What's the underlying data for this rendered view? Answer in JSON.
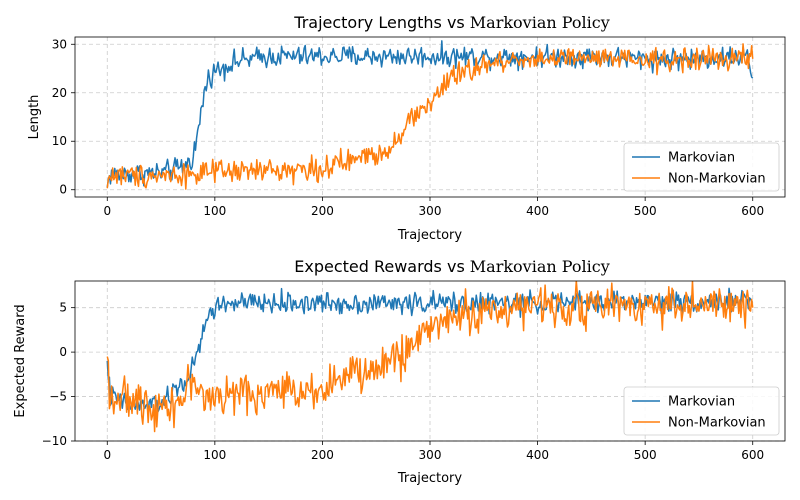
{
  "chart_data": [
    {
      "type": "line",
      "title_main": "Trajectory Lengths vs",
      "title_serif": "Markovian Policy",
      "xlabel": "Trajectory",
      "ylabel": "Length",
      "xlim": [
        -30,
        630
      ],
      "ylim": [
        -1.5,
        31.5
      ],
      "xticks": [
        0,
        100,
        200,
        300,
        400,
        500,
        600
      ],
      "yticks": [
        0,
        10,
        20,
        30
      ],
      "grid": true,
      "legend": "bottom-right",
      "series": [
        {
          "name": "Markovian",
          "color": "#1f77b4",
          "keypoints": [
            [
              0,
              0.5
            ],
            [
              2,
              3
            ],
            [
              20,
              3.3
            ],
            [
              50,
              3.5
            ],
            [
              60,
              4
            ],
            [
              70,
              4.8
            ],
            [
              78,
              6
            ],
            [
              82,
              9
            ],
            [
              86,
              14
            ],
            [
              90,
              20
            ],
            [
              95,
              23.5
            ],
            [
              100,
              24.5
            ],
            [
              110,
              25.5
            ],
            [
              120,
              26.5
            ],
            [
              150,
              27.5
            ],
            [
              200,
              27.5
            ],
            [
              250,
              27.5
            ],
            [
              300,
              27.5
            ],
            [
              350,
              27.5
            ],
            [
              400,
              27.5
            ],
            [
              450,
              27.5
            ],
            [
              500,
              27
            ],
            [
              550,
              27
            ],
            [
              595,
              27.5
            ],
            [
              598,
              25
            ],
            [
              600,
              23
            ]
          ],
          "noise": 1.1
        },
        {
          "name": "Non-Markovian",
          "color": "#ff7f0e",
          "keypoints": [
            [
              0,
              0.3
            ],
            [
              2,
              3
            ],
            [
              50,
              3
            ],
            [
              100,
              3.5
            ],
            [
              150,
              4
            ],
            [
              200,
              4.3
            ],
            [
              220,
              5.5
            ],
            [
              240,
              7
            ],
            [
              260,
              8
            ],
            [
              270,
              11
            ],
            [
              280,
              14
            ],
            [
              290,
              16
            ],
            [
              300,
              18
            ],
            [
              320,
              23
            ],
            [
              340,
              25
            ],
            [
              360,
              26
            ],
            [
              380,
              27
            ],
            [
              400,
              27
            ],
            [
              450,
              27
            ],
            [
              500,
              26.5
            ],
            [
              550,
              27
            ],
            [
              600,
              27
            ]
          ],
          "noise": 1.2
        }
      ]
    },
    {
      "type": "line",
      "title_main": "Expected Rewards vs",
      "title_serif": "Markovian Policy",
      "xlabel": "Trajectory",
      "ylabel": "Expected Reward",
      "xlim": [
        -30,
        630
      ],
      "ylim": [
        -10,
        8
      ],
      "xticks": [
        0,
        100,
        200,
        300,
        400,
        500,
        600
      ],
      "yticks": [
        -10,
        -5,
        0,
        5
      ],
      "grid": true,
      "legend": "bottom-right",
      "series": [
        {
          "name": "Markovian",
          "color": "#1f77b4",
          "keypoints": [
            [
              0,
              -1
            ],
            [
              3,
              -5
            ],
            [
              20,
              -6
            ],
            [
              40,
              -6
            ],
            [
              55,
              -5.5
            ],
            [
              65,
              -4
            ],
            [
              75,
              -3
            ],
            [
              82,
              -1
            ],
            [
              88,
              1.5
            ],
            [
              93,
              4
            ],
            [
              100,
              5
            ],
            [
              110,
              5.5
            ],
            [
              150,
              5.5
            ],
            [
              200,
              5.5
            ],
            [
              300,
              5.5
            ],
            [
              400,
              5.5
            ],
            [
              500,
              5.7
            ],
            [
              600,
              5.7
            ]
          ],
          "noise": 0.6
        },
        {
          "name": "Non-Markovian",
          "color": "#ff7f0e",
          "keypoints": [
            [
              0,
              -0.5
            ],
            [
              3,
              -5
            ],
            [
              40,
              -6
            ],
            [
              70,
              -5.5
            ],
            [
              80,
              -2.5
            ],
            [
              90,
              -5.5
            ],
            [
              100,
              -5
            ],
            [
              150,
              -4.5
            ],
            [
              200,
              -4
            ],
            [
              220,
              -2.8
            ],
            [
              250,
              -2
            ],
            [
              270,
              -0.5
            ],
            [
              290,
              1.5
            ],
            [
              300,
              3
            ],
            [
              320,
              4
            ],
            [
              350,
              4.5
            ],
            [
              380,
              5
            ],
            [
              400,
              5.2
            ],
            [
              450,
              5.2
            ],
            [
              500,
              5.4
            ],
            [
              550,
              5.3
            ],
            [
              600,
              5
            ]
          ],
          "noise": 1.1
        }
      ]
    }
  ]
}
